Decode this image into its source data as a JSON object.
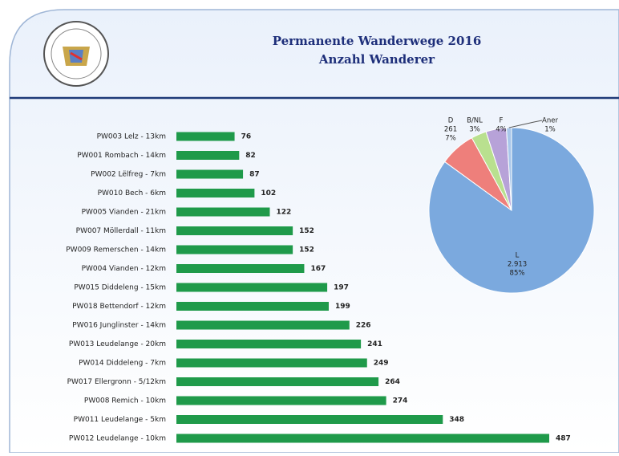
{
  "chart_data": [
    {
      "type": "bar",
      "orientation": "horizontal",
      "title": "Permanente Wanderwege  2016",
      "subtitle": "Anzahl Wanderer",
      "categories": [
        "PW003 Lelz - 13km",
        "PW001 Rombach - 14km",
        "PW002 Lëlfreg - 7km",
        "PW010 Bech - 6km",
        "PW005 Vianden - 21km",
        "PW007 Möllerdall - 11km",
        "PW009 Remerschen - 14km",
        "PW004 Vianden - 12km",
        "PW015 Diddeleng - 15km",
        "PW018 Bettendorf - 12km",
        "PW016 Junglinster - 14km",
        "PW013 Leudelange - 20km",
        "PW014 Diddeleng - 7km",
        "PW017 Ellergronn - 5/12km",
        "PW008 Remich - 10km",
        "PW011 Leudelange - 5km",
        "PW012 Leudelange - 10km"
      ],
      "values": [
        76,
        82,
        87,
        102,
        122,
        152,
        152,
        167,
        197,
        199,
        226,
        241,
        249,
        264,
        274,
        348,
        487
      ],
      "color": "#1f9a4a"
    },
    {
      "type": "pie",
      "categories": [
        "L",
        "D",
        "B/NL",
        "F",
        "Aner"
      ],
      "values": [
        85,
        7,
        3,
        4,
        1
      ],
      "value_labels": [
        "85%",
        "7%",
        "3%",
        "4%",
        "1%"
      ],
      "counts": [
        2913,
        261,
        null,
        null,
        null
      ],
      "count_labels": [
        "2.913",
        "261",
        null,
        null,
        null
      ],
      "colors": [
        "#7ba9de",
        "#ee7f7b",
        "#b9e08f",
        "#b7a2d8",
        "#a9c7ea"
      ]
    }
  ]
}
